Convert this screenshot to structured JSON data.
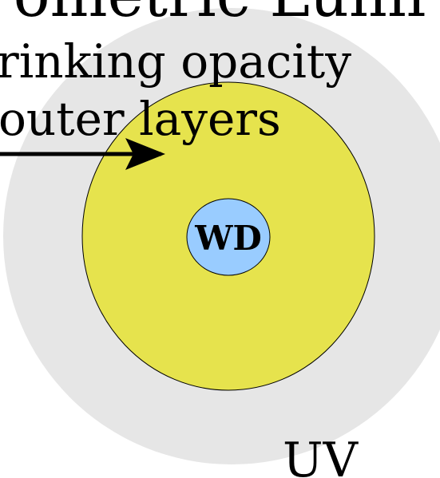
{
  "title": "ometric Lumi",
  "labels": {
    "opacity": "rinking opacity",
    "layers": "outer layers",
    "core": "WD",
    "band": "UV"
  }
}
